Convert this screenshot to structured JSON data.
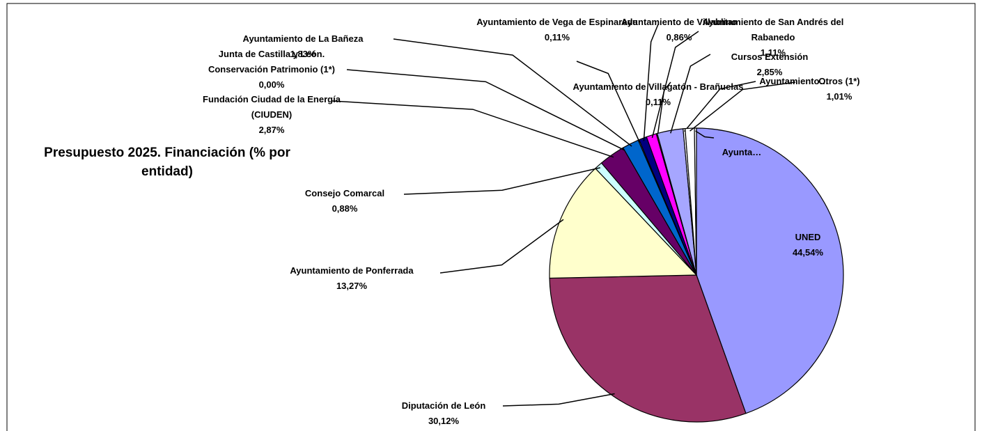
{
  "chart_data": {
    "type": "pie",
    "title": "Presupuesto 2025. Financiación (% por entidad)",
    "categories": [
      "UNED",
      "Diputación de León",
      "Ayuntamiento de Ponferrada",
      "Consejo Comarcal",
      "Fundación Ciudad de la Energía (CIUDEN)",
      "Junta de Castilla y León. Conservación Patrimonio (1*)",
      "Ayuntamiento de La Bañeza",
      "Ayuntamiento de Vega de Espinareda",
      "Ayuntamiento de Villablino",
      "Ayuntamiento de San Andrés del Rabanedo",
      "Ayuntamiento de Villagatón - Brañuelas",
      "Cursos Extensión",
      "Ayuntamiento…",
      "Otros (1*)",
      "Ayunta…"
    ],
    "values": [
      44.54,
      30.12,
      13.27,
      0.88,
      2.87,
      0.0,
      1.83,
      0.11,
      0.86,
      1.11,
      0.11,
      2.85,
      0.22,
      1.01,
      0.22
    ],
    "value_labels": [
      "44,54%",
      "30,12%",
      "13,27%",
      "0,88%",
      "2,87%",
      "0,00%",
      "1,83%",
      "0,11%",
      "0,86%",
      "1,11%",
      "0,11%",
      "2,85%",
      null,
      "1,01%",
      null
    ],
    "colors": [
      "#9999ff",
      "#993366",
      "#ffffcc",
      "#ccffff",
      "#660066",
      "#ff8080",
      "#0066cc",
      "#ccccff",
      "#000080",
      "#ff00ff",
      "#ffff00",
      "#a6a6ff",
      "#ffffff",
      "#ffffff",
      "#ffffff"
    ]
  }
}
